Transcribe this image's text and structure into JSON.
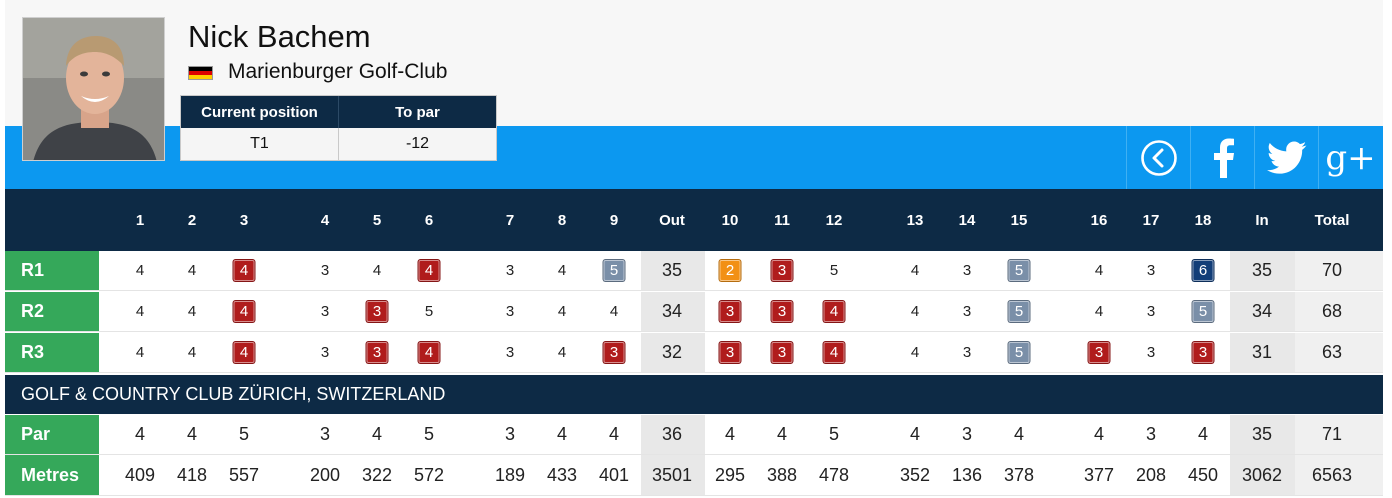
{
  "player": {
    "name": "Nick Bachem",
    "club": "Marienburger Golf-Club",
    "flag_colors": [
      "#000000",
      "#dd0000",
      "#ffce00"
    ]
  },
  "position_table": {
    "headers": [
      "Current position",
      "To par"
    ],
    "values": [
      "T1",
      "-12"
    ]
  },
  "social": {
    "icons": [
      "back-circle-icon",
      "facebook-icon",
      "twitter-icon",
      "google-plus-icon"
    ],
    "gplus_label": "g+"
  },
  "colors": {
    "navy": "#0d2a45",
    "blue": "#0c98f0",
    "green": "#35a85a",
    "bogey": "#b01c1c",
    "par_box": "#7a8fa8",
    "birdie": "#f29015",
    "double": "#123e78"
  },
  "scorecard": {
    "columns": [
      "1",
      "2",
      "3",
      "4",
      "5",
      "6",
      "7",
      "8",
      "9",
      "Out",
      "10",
      "11",
      "12",
      "13",
      "14",
      "15",
      "16",
      "17",
      "18",
      "In",
      "Total"
    ],
    "rounds": [
      {
        "label": "R1",
        "scores": [
          "4",
          "4",
          "4",
          "3",
          "4",
          "4",
          "3",
          "4",
          "5",
          "35",
          "2",
          "3",
          "5",
          "4",
          "3",
          "5",
          "4",
          "3",
          "6",
          "35",
          "70"
        ],
        "marks": [
          "",
          "",
          "bogey",
          "",
          "",
          "bogey",
          "",
          "",
          "par3",
          "",
          "birdie",
          "bogey",
          "",
          "",
          "",
          "par3",
          "",
          "",
          "dbl",
          "",
          ""
        ]
      },
      {
        "label": "R2",
        "scores": [
          "4",
          "4",
          "4",
          "3",
          "3",
          "5",
          "3",
          "4",
          "4",
          "34",
          "3",
          "3",
          "4",
          "4",
          "3",
          "5",
          "4",
          "3",
          "5",
          "34",
          "68"
        ],
        "marks": [
          "",
          "",
          "bogey",
          "",
          "bogey",
          "",
          "",
          "",
          "",
          "",
          "bogey",
          "bogey",
          "bogey",
          "",
          "",
          "par3",
          "",
          "",
          "par3",
          "",
          ""
        ]
      },
      {
        "label": "R3",
        "scores": [
          "4",
          "4",
          "4",
          "3",
          "3",
          "4",
          "3",
          "4",
          "3",
          "32",
          "3",
          "3",
          "4",
          "4",
          "3",
          "5",
          "3",
          "3",
          "3",
          "31",
          "63"
        ],
        "marks": [
          "",
          "",
          "bogey",
          "",
          "bogey",
          "bogey",
          "",
          "",
          "bogey",
          "",
          "bogey",
          "bogey",
          "bogey",
          "",
          "",
          "par3",
          "bogey",
          "",
          "bogey",
          "",
          ""
        ]
      }
    ],
    "course": "GOLF & COUNTRY CLUB ZÜRICH, SWITZERLAND",
    "par": {
      "label": "Par",
      "values": [
        "4",
        "4",
        "5",
        "3",
        "4",
        "5",
        "3",
        "4",
        "4",
        "36",
        "4",
        "4",
        "5",
        "4",
        "3",
        "4",
        "4",
        "3",
        "4",
        "35",
        "71"
      ]
    },
    "metres": {
      "label": "Metres",
      "values": [
        "409",
        "418",
        "557",
        "200",
        "322",
        "572",
        "189",
        "433",
        "401",
        "3501",
        "295",
        "388",
        "478",
        "352",
        "136",
        "378",
        "377",
        "208",
        "450",
        "3062",
        "6563"
      ]
    }
  }
}
